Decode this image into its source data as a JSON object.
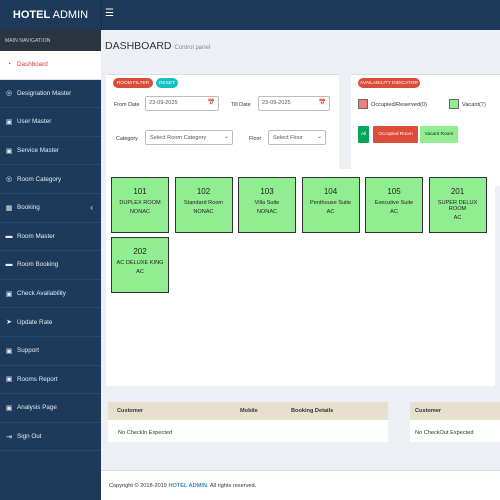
{
  "header": {
    "logo_bold": "HOTEL",
    "logo_rest": " ADMIN",
    "menu_icon": "hamburger-icon"
  },
  "sidebar": {
    "heading": "MAIN NAVIGATION",
    "items": [
      {
        "label": "Dashboard",
        "icon": "dashboard-icon"
      },
      {
        "label": "Designation Master",
        "icon": "circle-icon"
      },
      {
        "label": "User Master",
        "icon": "users-icon"
      },
      {
        "label": "Service Master",
        "icon": "service-icon"
      },
      {
        "label": "Room Category",
        "icon": "circle-icon"
      },
      {
        "label": "Booking",
        "icon": "booking-icon"
      },
      {
        "label": "Room Master",
        "icon": "bed-icon"
      },
      {
        "label": "Room Booking",
        "icon": "bed-icon"
      },
      {
        "label": "Check Availability",
        "icon": "check-icon"
      },
      {
        "label": "Update Rate",
        "icon": "rocket-icon"
      },
      {
        "label": "Support",
        "icon": "support-icon"
      },
      {
        "label": "Rooms Report",
        "icon": "report-icon"
      },
      {
        "label": "Analysis Page",
        "icon": "analysis-icon"
      },
      {
        "label": "Sign Out",
        "icon": "signout-icon"
      }
    ]
  },
  "page": {
    "title": "DASHBOARD",
    "subtitle": "Control panel"
  },
  "filter": {
    "title": "ROOM FILTER",
    "reset": "RESET",
    "from_label": "From Date",
    "from_value": "23-09-2025",
    "till_label": "Till Date",
    "till_value": "23-09-2025",
    "category_label": "Category",
    "category_value": "Select Room Category",
    "floor_label": "Floor",
    "floor_value": "Select Floor"
  },
  "availability": {
    "title": "AVAILABILITY INDICATOR",
    "occupied_label": "Occupied/Reserved(0)",
    "vacant_label": "Vacant(7)",
    "btn_all": "All",
    "btn_occupied": "Occupied Room",
    "btn_vacant": "Vacant Room",
    "occupied_color": "#f08080",
    "vacant_color": "#90ee90"
  },
  "rooms": [
    {
      "num": "101",
      "type": "DUPLEX ROOM",
      "ac": "NONAC"
    },
    {
      "num": "102",
      "type": "Standard Room",
      "ac": "NONAC"
    },
    {
      "num": "103",
      "type": "Villa Suite",
      "ac": "NONAC"
    },
    {
      "num": "104",
      "type": "Penthouse Suite",
      "ac": "AC"
    },
    {
      "num": "105",
      "type": "Executive Suite",
      "ac": "AC"
    },
    {
      "num": "201",
      "type": "SUPER DELUX ROOM",
      "ac": "AC"
    },
    {
      "num": "202",
      "type": "AC DELUXE KING",
      "ac": "AC"
    }
  ],
  "checkin_table": {
    "headers": [
      "Customer",
      "Mobile",
      "Booking Details"
    ],
    "empty": "No CheckIn Expected"
  },
  "checkout_table": {
    "headers": [
      "Customer"
    ],
    "empty": "No CheckOut Expected"
  },
  "footer": {
    "prefix": "Copyright © 2018-2019 ",
    "brand": "HOTEL ADMIN.",
    "suffix": " All rights reserved."
  }
}
